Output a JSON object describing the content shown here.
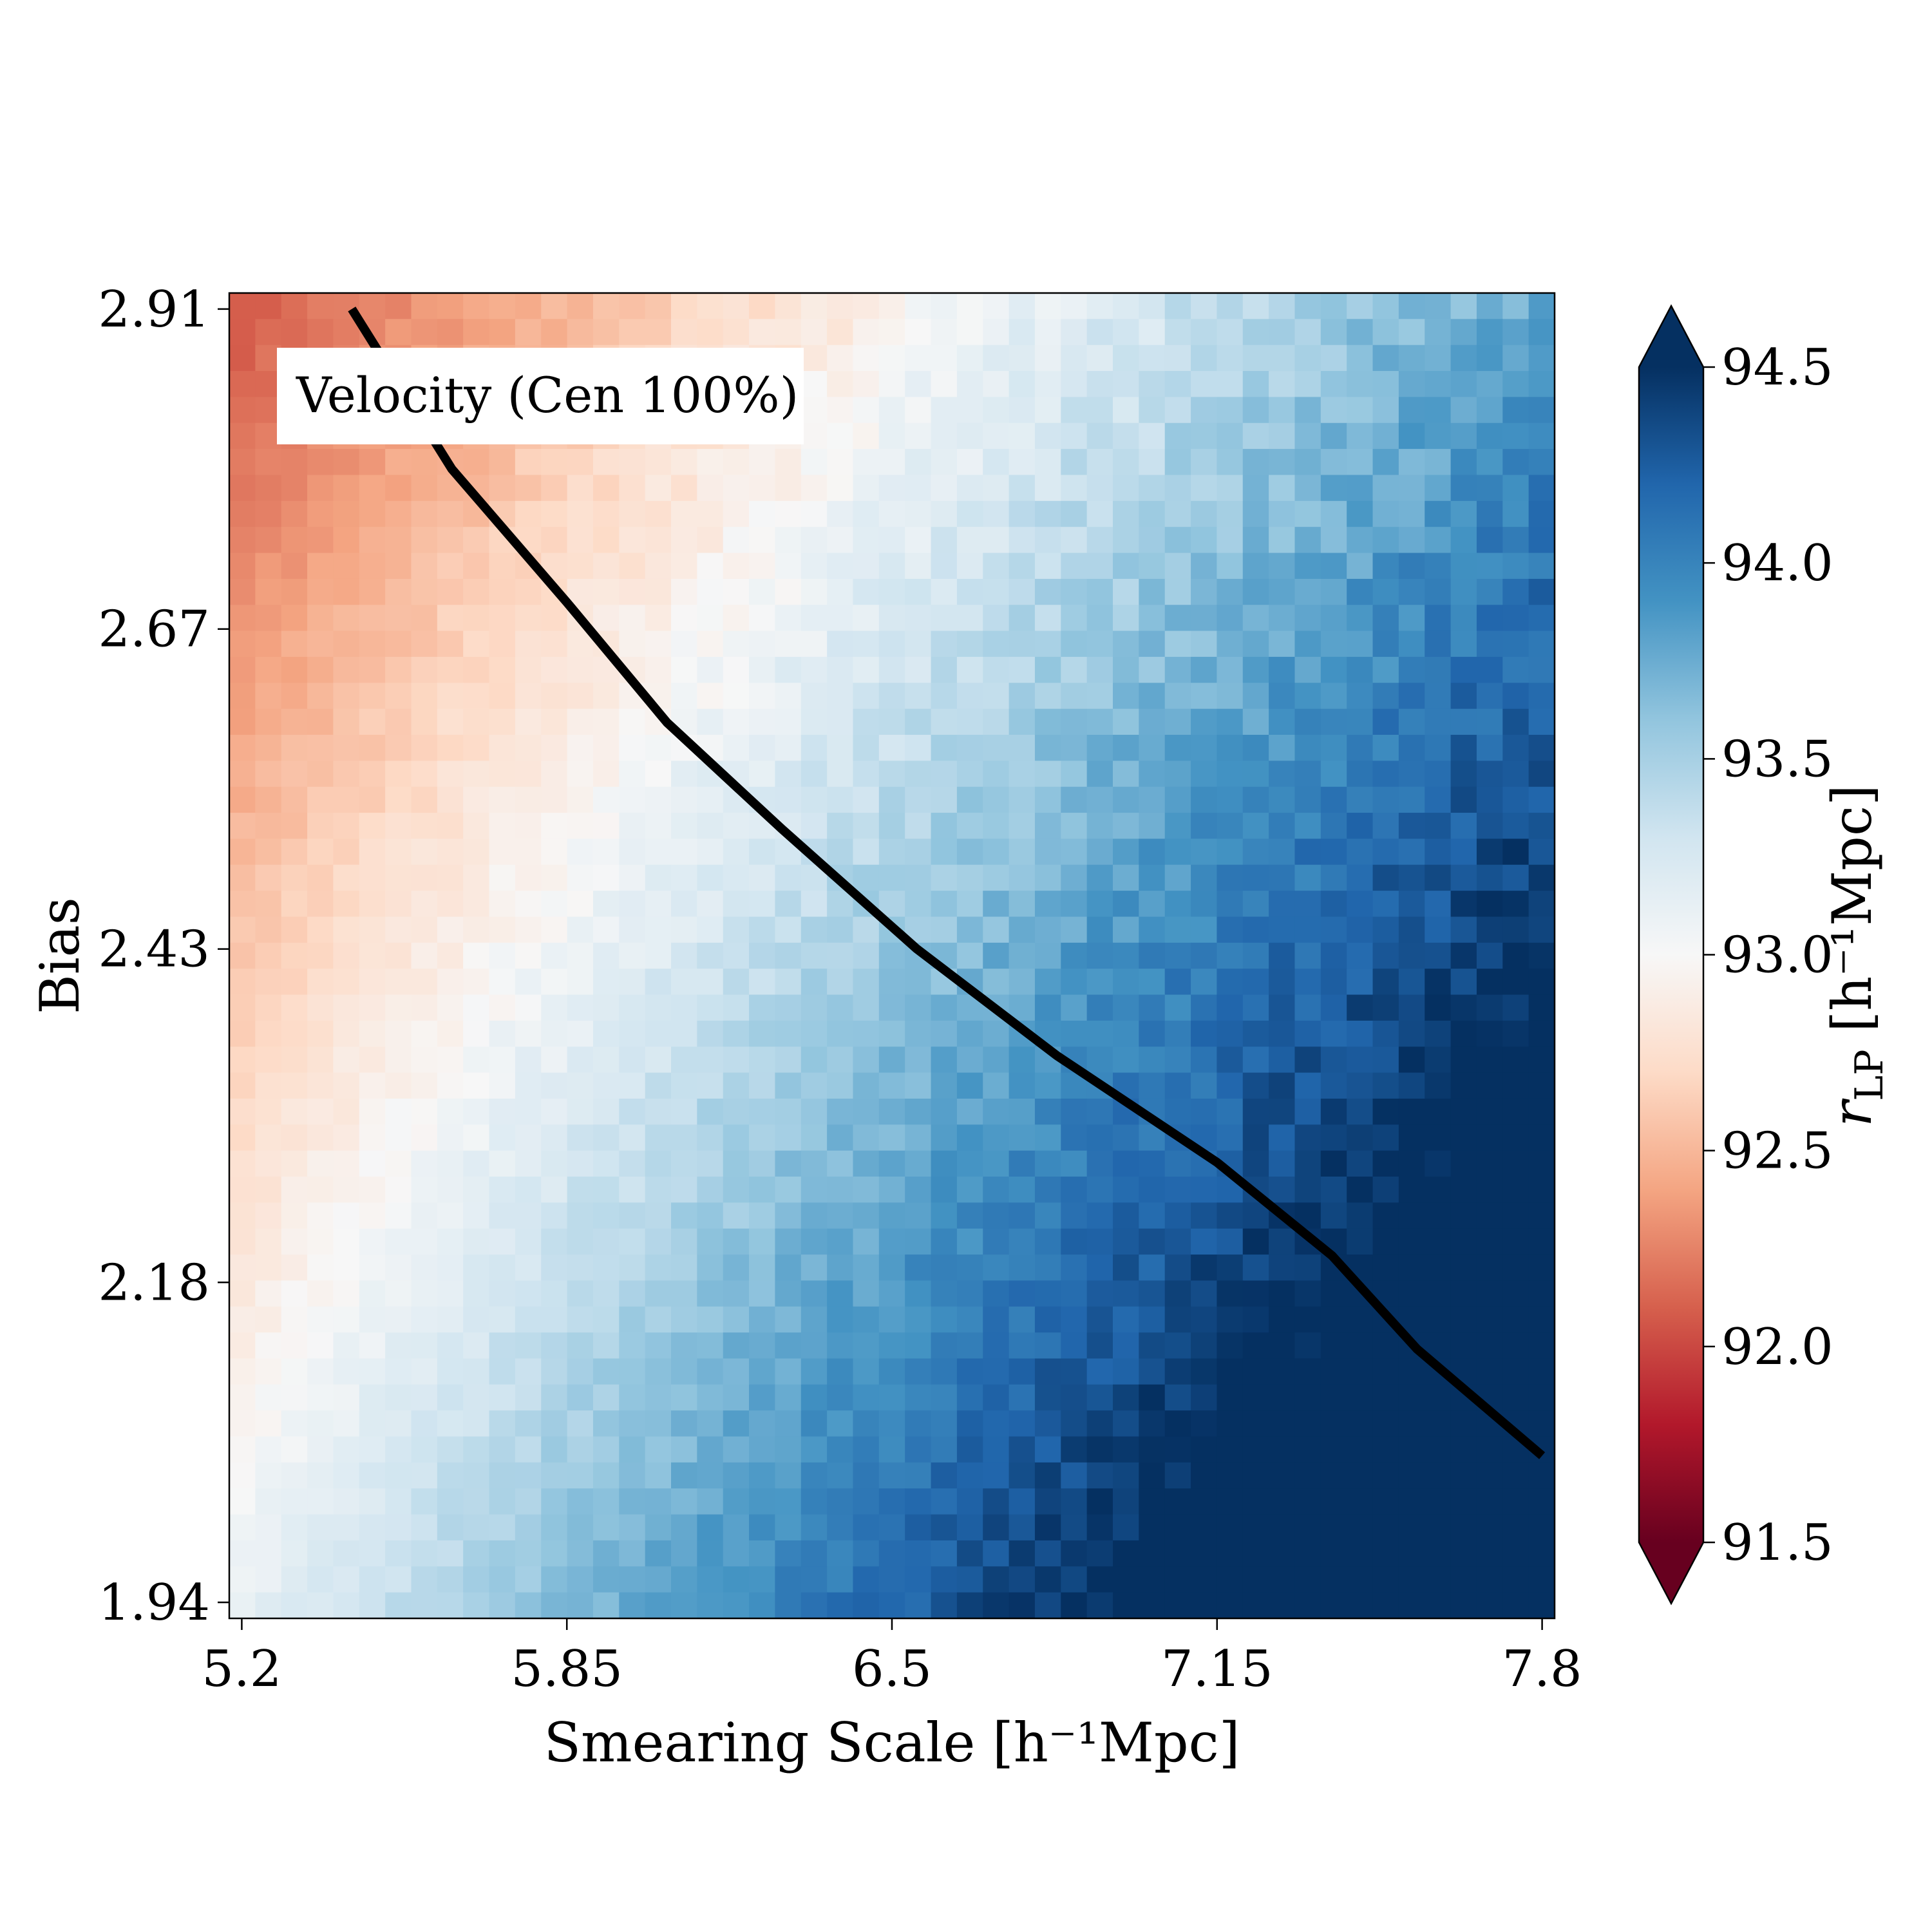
{
  "chart_data": {
    "type": "heatmap",
    "title": "",
    "annotation": "Velocity (Cen 100%)",
    "xlabel": "Smearing Scale [h⁻¹Mpc]",
    "ylabel": "Bias",
    "x_range": [
      5.175,
      7.825
    ],
    "y_range": [
      1.928,
      2.922
    ],
    "x_ticks": [
      5.2,
      5.85,
      6.5,
      7.15,
      7.8
    ],
    "x_tick_labels": [
      "5.2",
      "5.85",
      "6.5",
      "7.15",
      "7.8"
    ],
    "y_ticks": [
      1.94,
      2.18,
      2.43,
      2.67,
      2.91
    ],
    "y_tick_labels": [
      "1.94",
      "2.18",
      "2.43",
      "2.67",
      "2.91"
    ],
    "grid": false,
    "grid_cols": 51,
    "grid_rows": 51,
    "cell_values_description_note": "",
    "value_model": {
      "min_corner": {
        "x": 5.2,
        "y": 2.91,
        "value": 91.9
      },
      "max_corner": {
        "x": 7.8,
        "y": 1.94,
        "value": 94.6
      }
    },
    "colorbar": {
      "label": "r_LP [h⁻¹Mpc]",
      "label_main": "r",
      "label_sub": "LP",
      "label_units": " [h⁻¹Mpc]",
      "min": 91.5,
      "max": 94.5,
      "ticks": [
        91.5,
        92.0,
        92.5,
        93.0,
        93.5,
        94.0,
        94.5
      ],
      "tick_labels": [
        "91.5",
        "92.0",
        "92.5",
        "93.0",
        "93.5",
        "94.0",
        "94.5"
      ],
      "extend": "both",
      "colormap": "RdBu",
      "colormap_stops": [
        "#67001f",
        "#b2182b",
        "#d6604d",
        "#f4a582",
        "#fddbc7",
        "#f7f7f7",
        "#d1e5f0",
        "#92c5de",
        "#4393c3",
        "#2166ac",
        "#053061"
      ]
    },
    "contour_line": {
      "color": "#000000",
      "points": [
        {
          "x": 5.42,
          "y": 2.91
        },
        {
          "x": 5.62,
          "y": 2.79
        },
        {
          "x": 5.85,
          "y": 2.69
        },
        {
          "x": 6.05,
          "y": 2.6
        },
        {
          "x": 6.28,
          "y": 2.52
        },
        {
          "x": 6.55,
          "y": 2.43
        },
        {
          "x": 6.83,
          "y": 2.35
        },
        {
          "x": 7.15,
          "y": 2.27
        },
        {
          "x": 7.38,
          "y": 2.2
        },
        {
          "x": 7.55,
          "y": 2.13
        },
        {
          "x": 7.8,
          "y": 2.05
        }
      ]
    }
  }
}
